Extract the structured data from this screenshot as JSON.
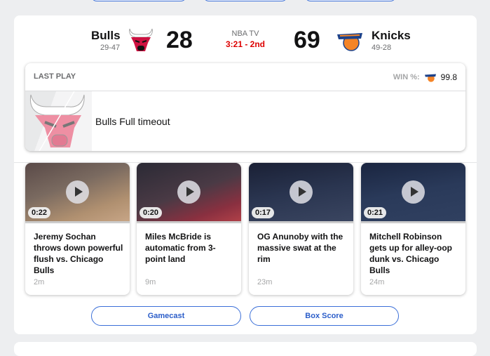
{
  "game": {
    "away": {
      "name": "Bulls",
      "record": "29-47",
      "score": "28",
      "color": "#ce1141"
    },
    "home": {
      "name": "Knicks",
      "record": "49-28",
      "score": "69",
      "color": "#f58426"
    },
    "network": "NBA TV",
    "clock": "3:21 - 2nd"
  },
  "last_play": {
    "title": "LAST PLAY",
    "win_label": "WIN %:",
    "win_value": "99.8",
    "text": "Bulls Full timeout"
  },
  "videos": [
    {
      "duration": "0:22",
      "title": "Jeremy Sochan throws down powerful flush vs. Chicago Bulls",
      "age": "2m"
    },
    {
      "duration": "0:20",
      "title": "Miles McBride is automatic from 3-point land",
      "age": "9m"
    },
    {
      "duration": "0:17",
      "title": "OG Anunoby with the massive swat at the rim",
      "age": "23m"
    },
    {
      "duration": "0:21",
      "title": "Mitchell Robinson gets up for alley-oop dunk vs. Chicago Bulls",
      "age": "24m"
    }
  ],
  "buttons": {
    "gamecast": "Gamecast",
    "boxscore": "Box Score"
  }
}
